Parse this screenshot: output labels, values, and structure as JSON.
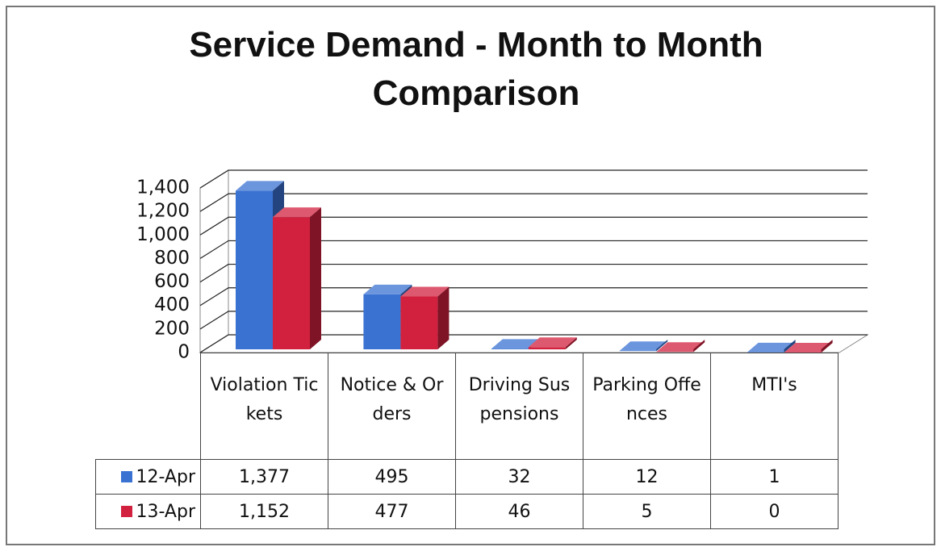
{
  "chart_data": {
    "type": "bar3d",
    "title": "Service Demand - Month to Month Comparison",
    "categories": [
      "Violation Tickets",
      "Notice & Orders",
      "Driving Suspensions",
      "Parking Offences",
      "MTI's"
    ],
    "series": [
      {
        "name": "12-Apr",
        "color": "#3a72d2",
        "values": [
          1377,
          495,
          32,
          12,
          1
        ],
        "value_labels": [
          "1,377",
          "495",
          "32",
          "12",
          "1"
        ]
      },
      {
        "name": "13-Apr",
        "color": "#d2213f",
        "values": [
          1152,
          477,
          46,
          5,
          0
        ],
        "value_labels": [
          "1,152",
          "477",
          "46",
          "5",
          "0"
        ]
      }
    ],
    "ylim": [
      0,
      1400
    ],
    "yticks": [
      0,
      200,
      400,
      600,
      800,
      {
        "value": 1000,
        "label": "1,000"
      },
      {
        "value": 1200,
        "label": "1,200"
      },
      {
        "value": 1400,
        "label": "1,400"
      }
    ],
    "grid": true
  }
}
